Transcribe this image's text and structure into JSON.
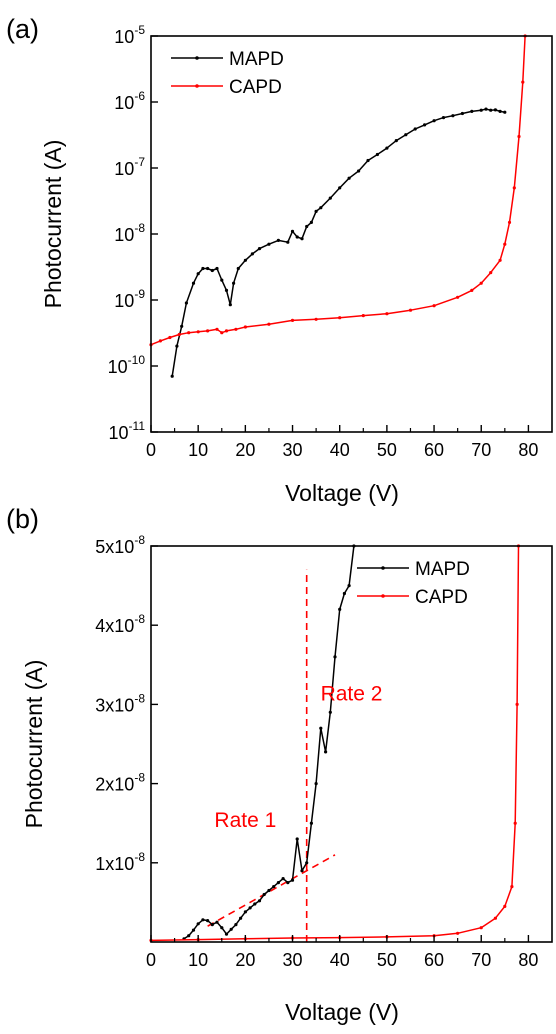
{
  "chart_data": [
    {
      "type": "line",
      "panel_label": "(a)",
      "xlabel": "Voltage (V)",
      "ylabel": "Photocurrent (A)",
      "xlim": [
        0,
        85
      ],
      "ylim": [
        1e-11,
        1e-05
      ],
      "yscale": "log",
      "xticks": [
        0,
        10,
        20,
        30,
        40,
        50,
        60,
        70,
        80
      ],
      "xtick_labels": [
        "0",
        "10",
        "20",
        "30",
        "40",
        "50",
        "60",
        "70",
        "80"
      ],
      "yticks": [
        {
          "value": 1e-11,
          "base": "10",
          "exp": "-11"
        },
        {
          "value": 1e-10,
          "base": "10",
          "exp": "-10"
        },
        {
          "value": 1e-09,
          "base": "10",
          "exp": "-9"
        },
        {
          "value": 1e-08,
          "base": "10",
          "exp": "-8"
        },
        {
          "value": 1e-07,
          "base": "10",
          "exp": "-7"
        },
        {
          "value": 1e-06,
          "base": "10",
          "exp": "-6"
        },
        {
          "value": 1e-05,
          "base": "10",
          "exp": "-5"
        }
      ],
      "legend_position": "top-left",
      "grid": false,
      "series": [
        {
          "name": "MAPD",
          "color": "#000000",
          "points": [
            [
              4.5,
              7e-11
            ],
            [
              5.5,
              2e-10
            ],
            [
              6.5,
              4e-10
            ],
            [
              7.5,
              9e-10
            ],
            [
              9,
              1.8e-09
            ],
            [
              10,
              2.5e-09
            ],
            [
              11,
              3e-09
            ],
            [
              12,
              3e-09
            ],
            [
              13,
              2.8e-09
            ],
            [
              14,
              3e-09
            ],
            [
              15,
              2e-09
            ],
            [
              16,
              1.4e-09
            ],
            [
              16.8,
              8.5e-10
            ],
            [
              17.5,
              1.8e-09
            ],
            [
              18.5,
              3e-09
            ],
            [
              20,
              4e-09
            ],
            [
              21.5,
              5e-09
            ],
            [
              23,
              6e-09
            ],
            [
              25,
              7e-09
            ],
            [
              27,
              8e-09
            ],
            [
              29,
              7.5e-09
            ],
            [
              30,
              1.1e-08
            ],
            [
              31,
              9e-09
            ],
            [
              32,
              8.5e-09
            ],
            [
              33,
              1.3e-08
            ],
            [
              34,
              1.5e-08
            ],
            [
              35,
              2.2e-08
            ],
            [
              36,
              2.5e-08
            ],
            [
              38,
              3.5e-08
            ],
            [
              40,
              5e-08
            ],
            [
              42,
              7e-08
            ],
            [
              44,
              9e-08
            ],
            [
              46,
              1.3e-07
            ],
            [
              48,
              1.6e-07
            ],
            [
              50,
              2e-07
            ],
            [
              52,
              2.6e-07
            ],
            [
              54,
              3.2e-07
            ],
            [
              56,
              3.9e-07
            ],
            [
              58,
              4.5e-07
            ],
            [
              60,
              5.2e-07
            ],
            [
              62,
              5.8e-07
            ],
            [
              64,
              6.2e-07
            ],
            [
              66,
              6.7e-07
            ],
            [
              68,
              7.2e-07
            ],
            [
              70,
              7.5e-07
            ],
            [
              71,
              7.8e-07
            ],
            [
              72,
              7.5e-07
            ],
            [
              73,
              7.6e-07
            ],
            [
              74,
              7.2e-07
            ],
            [
              75,
              7e-07
            ]
          ]
        },
        {
          "name": "CAPD",
          "color": "#ff0000",
          "points": [
            [
              0,
              2.1e-10
            ],
            [
              2,
              2.4e-10
            ],
            [
              4,
              2.7e-10
            ],
            [
              6,
              3e-10
            ],
            [
              8,
              3.2e-10
            ],
            [
              10,
              3.3e-10
            ],
            [
              12,
              3.4e-10
            ],
            [
              14,
              3.6e-10
            ],
            [
              15,
              3.2e-10
            ],
            [
              16,
              3.4e-10
            ],
            [
              18,
              3.6e-10
            ],
            [
              20,
              3.9e-10
            ],
            [
              25,
              4.3e-10
            ],
            [
              30,
              4.9e-10
            ],
            [
              35,
              5.1e-10
            ],
            [
              40,
              5.4e-10
            ],
            [
              45,
              5.8e-10
            ],
            [
              50,
              6.2e-10
            ],
            [
              55,
              7e-10
            ],
            [
              60,
              8.2e-10
            ],
            [
              65,
              1.1e-09
            ],
            [
              68,
              1.4e-09
            ],
            [
              70,
              1.8e-09
            ],
            [
              72,
              2.6e-09
            ],
            [
              74,
              4e-09
            ],
            [
              75,
              7e-09
            ],
            [
              76,
              1.5e-08
            ],
            [
              77,
              5e-08
            ],
            [
              78,
              3e-07
            ],
            [
              78.8,
              2e-06
            ],
            [
              79.3,
              1e-05
            ]
          ]
        }
      ]
    },
    {
      "type": "line",
      "panel_label": "(b)",
      "xlabel": "Voltage (V)",
      "ylabel": "Photocurrent (A)",
      "xlim": [
        0,
        85
      ],
      "ylim": [
        0,
        5e-08
      ],
      "yscale": "linear",
      "xticks": [
        0,
        10,
        20,
        30,
        40,
        50,
        60,
        70,
        80
      ],
      "xtick_labels": [
        "0",
        "10",
        "20",
        "30",
        "40",
        "50",
        "60",
        "70",
        "80"
      ],
      "yticks": [
        {
          "value": 1e-08,
          "base": "1x10",
          "exp": "-8"
        },
        {
          "value": 2e-08,
          "base": "2x10",
          "exp": "-8"
        },
        {
          "value": 3e-08,
          "base": "3x10",
          "exp": "-8"
        },
        {
          "value": 4e-08,
          "base": "4x10",
          "exp": "-8"
        },
        {
          "value": 5e-08,
          "base": "5x10",
          "exp": "-8"
        }
      ],
      "legend_position": "top-right",
      "grid": false,
      "series": [
        {
          "name": "MAPD",
          "color": "#000000",
          "points": [
            [
              7,
              4e-10
            ],
            [
              8,
              8e-10
            ],
            [
              9,
              1.5e-09
            ],
            [
              10,
              2.3e-09
            ],
            [
              11,
              2.8e-09
            ],
            [
              12,
              2.7e-09
            ],
            [
              13,
              2.2e-09
            ],
            [
              14,
              2.5e-09
            ],
            [
              15,
              1.8e-09
            ],
            [
              16,
              1e-09
            ],
            [
              17,
              1.6e-09
            ],
            [
              18,
              2.2e-09
            ],
            [
              19,
              3e-09
            ],
            [
              20,
              3.8e-09
            ],
            [
              21,
              4.3e-09
            ],
            [
              22,
              4.8e-09
            ],
            [
              23,
              5.2e-09
            ],
            [
              24,
              6e-09
            ],
            [
              25,
              6.5e-09
            ],
            [
              26,
              7e-09
            ],
            [
              27,
              7.5e-09
            ],
            [
              28,
              8e-09
            ],
            [
              29,
              7.5e-09
            ],
            [
              30,
              7.8e-09
            ],
            [
              31,
              1.3e-08
            ],
            [
              32,
              9e-09
            ],
            [
              33,
              1e-08
            ],
            [
              34,
              1.5e-08
            ],
            [
              35,
              2e-08
            ],
            [
              36,
              2.7e-08
            ],
            [
              37,
              2.4e-08
            ],
            [
              38,
              2.9e-08
            ],
            [
              39,
              3.6e-08
            ],
            [
              40,
              4.2e-08
            ],
            [
              41,
              4.4e-08
            ],
            [
              42,
              4.5e-08
            ],
            [
              43,
              5e-08
            ]
          ]
        },
        {
          "name": "CAPD",
          "color": "#ff0000",
          "points": [
            [
              0,
              2e-10
            ],
            [
              10,
              3e-10
            ],
            [
              20,
              4e-10
            ],
            [
              30,
              5e-10
            ],
            [
              40,
              5.5e-10
            ],
            [
              50,
              6.5e-10
            ],
            [
              60,
              8e-10
            ],
            [
              65,
              1.1e-09
            ],
            [
              70,
              1.8e-09
            ],
            [
              73,
              3e-09
            ],
            [
              75,
              4.5e-09
            ],
            [
              76.5,
              7e-09
            ],
            [
              77.2,
              1.5e-08
            ],
            [
              77.6,
              3e-08
            ],
            [
              77.9,
              5e-08
            ]
          ]
        }
      ],
      "annotations": [
        {
          "text": "Rate 1",
          "x": 20,
          "y": 1.45e-08,
          "color": "#ff0000"
        },
        {
          "text": "Rate 2",
          "x": 42.5,
          "y": 3.05e-08,
          "color": "#ff0000"
        }
      ],
      "guides": [
        {
          "kind": "vertical",
          "x": 33,
          "y_from": 0,
          "y_to": 4.7e-08,
          "color": "#ff0000",
          "dash": true
        },
        {
          "kind": "line",
          "from": [
            12,
            2e-09
          ],
          "to": [
            39,
            1.1e-08
          ],
          "color": "#ff0000",
          "dash": true
        }
      ]
    }
  ]
}
